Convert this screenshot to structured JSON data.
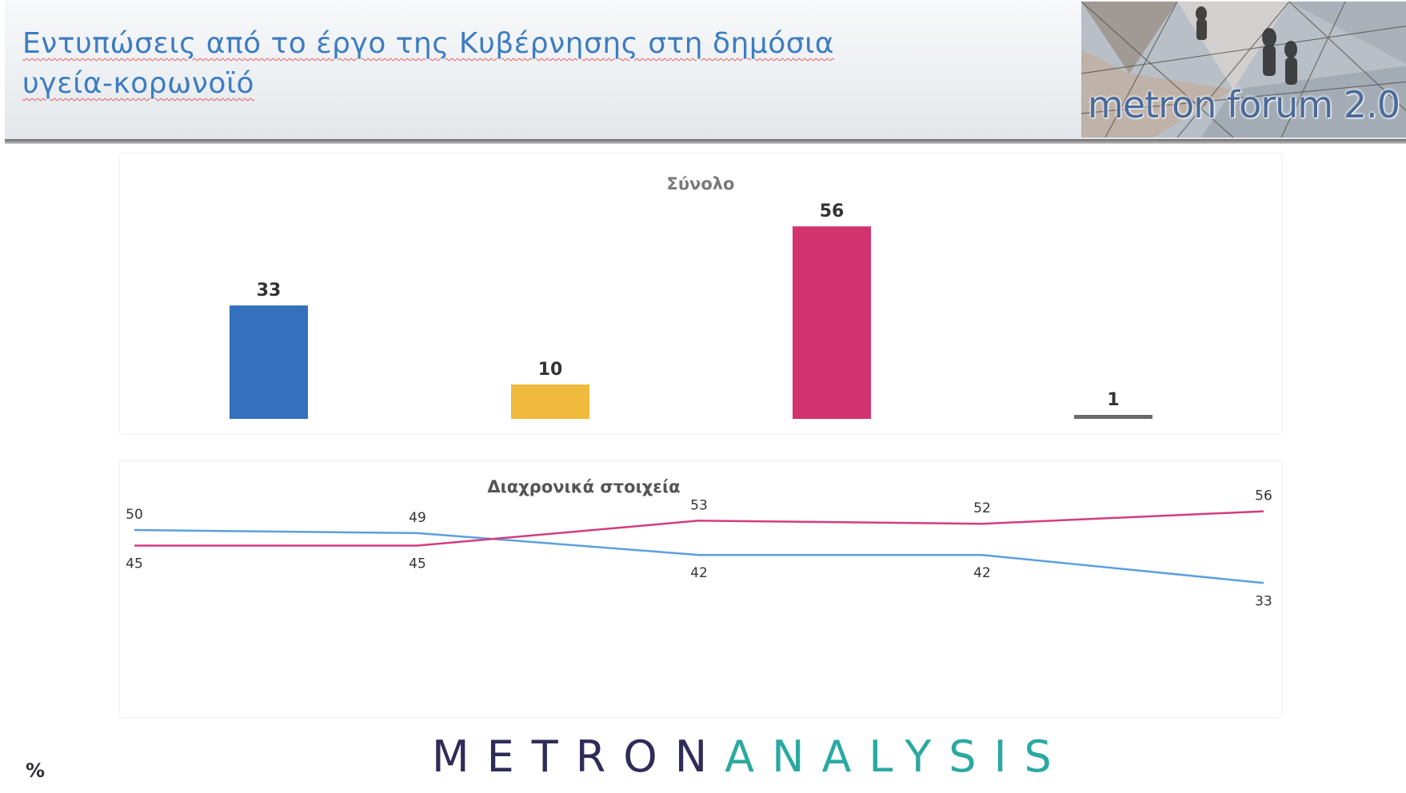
{
  "header": {
    "title_line1": "Εντυπώσεις από το έργο της Κυβέρνησης στη δημόσια",
    "title_line2": "υγεία-κορωνοϊό",
    "forum_label": "metron forum 2.0"
  },
  "footer": {
    "percent_sign": "%",
    "logo_metron": "METRON",
    "logo_analysis": "ANALYSIS"
  },
  "colors": {
    "blue": "#3470be",
    "yellow": "#f0bb3c",
    "magenta": "#d3336f",
    "grey": "#6b6b6b",
    "line_blue": "#5b9fe0",
    "line_magenta": "#d23c82"
  },
  "chart_data": [
    {
      "type": "bar",
      "title": "Σύνολο",
      "categories": [
        "",
        "",
        "",
        ""
      ],
      "values": [
        33,
        10,
        56,
        1
      ],
      "colors": [
        "#3470be",
        "#f0bb3c",
        "#d3336f",
        "#6b6b6b"
      ],
      "ylim": [
        0,
        60
      ],
      "grid": false,
      "legend": "none"
    },
    {
      "type": "line",
      "title": "Διαχρονικά στοιχεία",
      "x": [
        "",
        "",
        "",
        "",
        ""
      ],
      "series": [
        {
          "values": [
            50,
            49,
            42,
            42,
            33
          ],
          "color": "#5b9fe0"
        },
        {
          "values": [
            45,
            45,
            53,
            52,
            56
          ],
          "color": "#d23c82"
        }
      ],
      "ylim": [
        0,
        60
      ],
      "grid": false,
      "legend": "none"
    }
  ]
}
